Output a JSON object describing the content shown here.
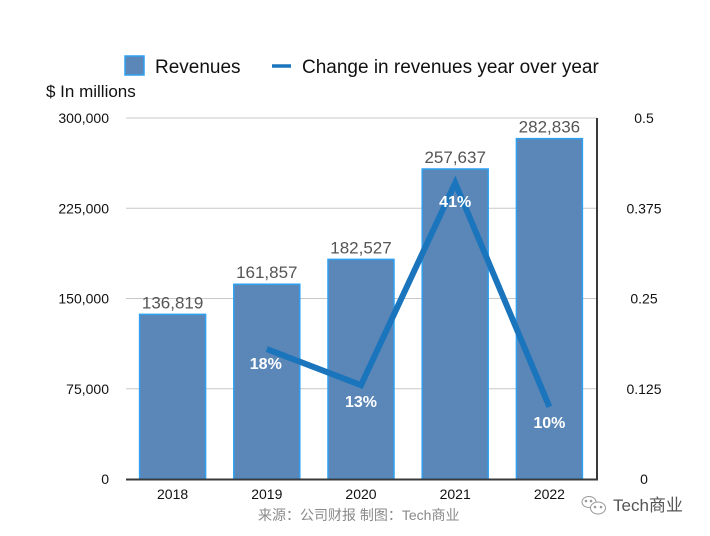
{
  "chart_data": {
    "type": "bar",
    "categories": [
      "2018",
      "2019",
      "2020",
      "2021",
      "2022"
    ],
    "series": [
      {
        "name": "Revenues",
        "kind": "bar",
        "axis": "left",
        "values": [
          136819,
          161857,
          182527,
          257637,
          282836
        ],
        "labels": [
          "136,819",
          "161,857",
          "182,527",
          "257,637",
          "282,836"
        ],
        "color": "#5b86b8",
        "border_color": "#2fa0f0"
      },
      {
        "name": "Change in revenues year over year",
        "kind": "line",
        "axis": "right",
        "values": [
          null,
          0.18,
          0.13,
          0.41,
          0.1
        ],
        "labels": [
          null,
          "18%",
          "13%",
          "41%",
          "10%"
        ],
        "color": "#1a75bc"
      }
    ],
    "left_axis": {
      "label": "$ In millions",
      "ylim": [
        0,
        300000
      ],
      "ticks": [
        0,
        75000,
        150000,
        225000,
        300000
      ],
      "tick_labels": [
        "0",
        "75,000",
        "150,000",
        "225,000",
        "300,000"
      ]
    },
    "right_axis": {
      "ylim": [
        0,
        0.5
      ],
      "ticks": [
        0,
        0.125,
        0.25,
        0.375,
        0.5
      ],
      "tick_labels": [
        "0",
        "0.125",
        "0.25",
        "0.375",
        "0.5"
      ]
    },
    "grid": true,
    "legend": {
      "placement": "top-center",
      "entries": [
        "Revenues",
        "Change in revenues year over year"
      ]
    },
    "title": "",
    "xlabel": ""
  },
  "footer": {
    "source": "来源：公司财报 制图：Tech商业",
    "watermark": "Tech商业",
    "watermark_icon": "wechat-icon"
  }
}
